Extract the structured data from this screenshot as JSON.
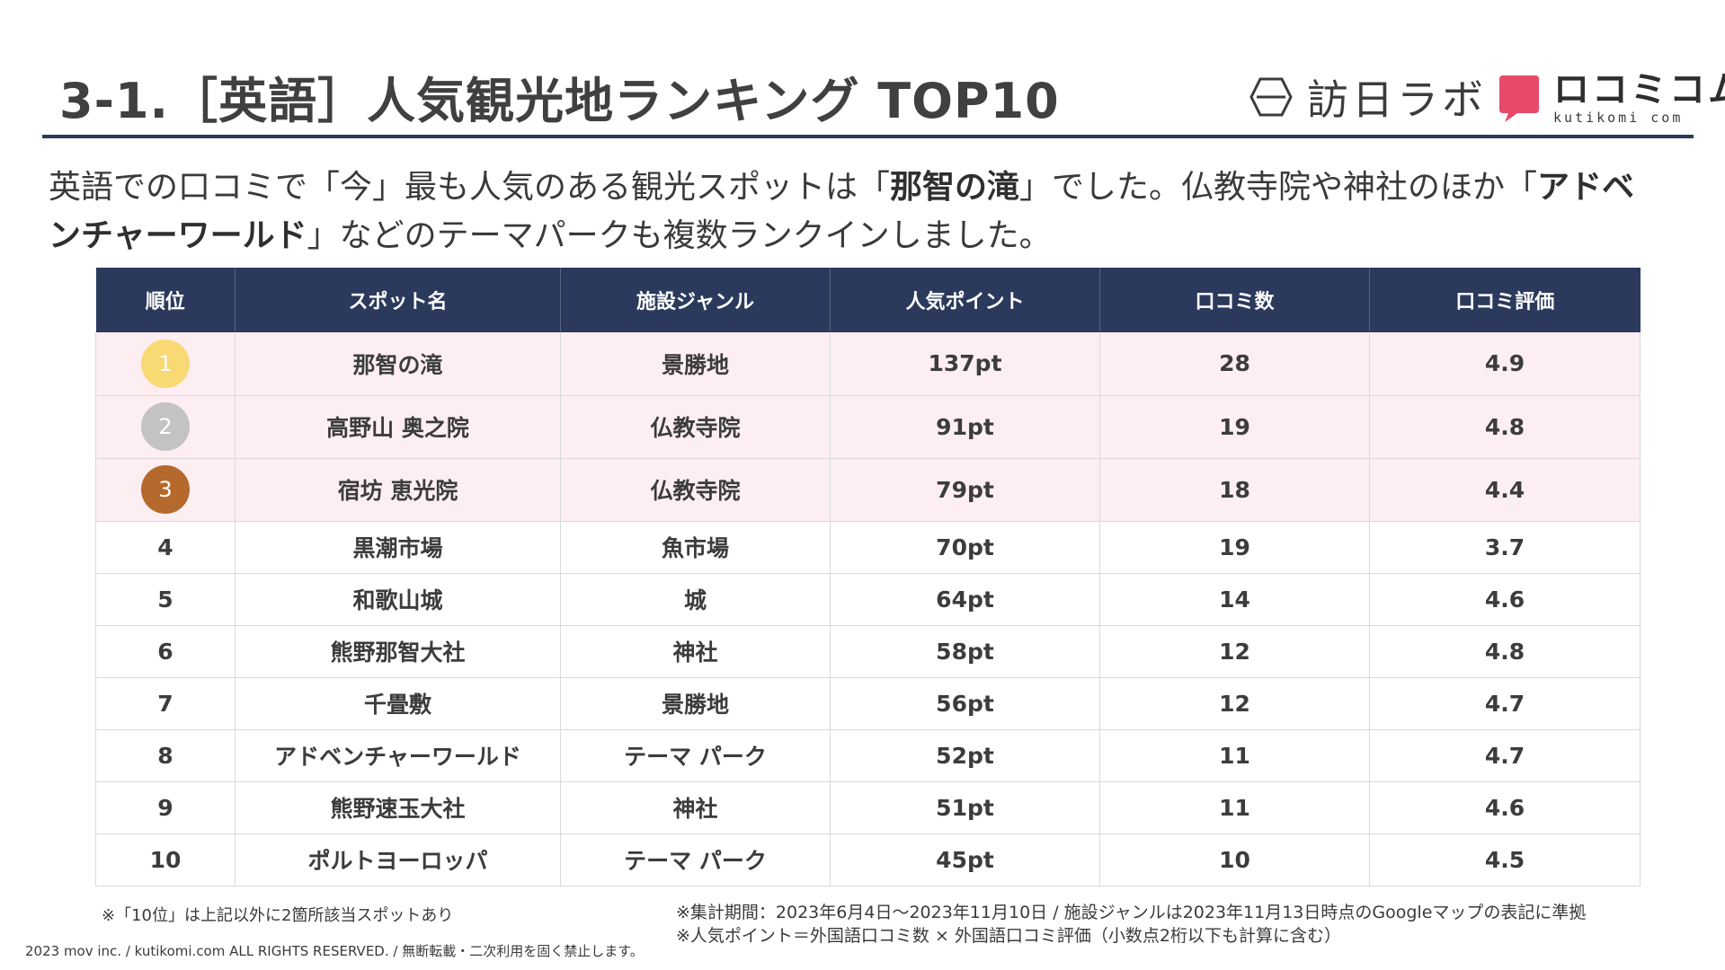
{
  "header": {
    "title": "3-1.［英語］人気観光地ランキング TOP10",
    "logo_houjin_text": "訪日ラボ",
    "logo_kuchikomi_main": "ロコミコム",
    "logo_kuchikomi_sub": "kutikomi com"
  },
  "lead": {
    "part1": "英語での口コミで「今」最も人気のある観光スポットは「",
    "bold1": "那智の滝",
    "part2": "」でした。仏教寺院や神社のほか「",
    "bold2": "アドベンチャーワールド",
    "part3": "」などのテーマパークも複数ランクインしました。"
  },
  "table": {
    "columns": [
      "順位",
      "スポット名",
      "施設ジャンル",
      "人気ポイント",
      "口コミ数",
      "口コミ評価"
    ],
    "rows": [
      {
        "rank": "1",
        "spot": "那智の滝",
        "genre": "景勝地",
        "points": "137pt",
        "reviews": "28",
        "rating": "4.9"
      },
      {
        "rank": "2",
        "spot": "高野山 奥之院",
        "genre": "仏教寺院",
        "points": "91pt",
        "reviews": "19",
        "rating": "4.8"
      },
      {
        "rank": "3",
        "spot": "宿坊 恵光院",
        "genre": "仏教寺院",
        "points": "79pt",
        "reviews": "18",
        "rating": "4.4"
      },
      {
        "rank": "4",
        "spot": "黒潮市場",
        "genre": "魚市場",
        "points": "70pt",
        "reviews": "19",
        "rating": "3.7"
      },
      {
        "rank": "5",
        "spot": "和歌山城",
        "genre": "城",
        "points": "64pt",
        "reviews": "14",
        "rating": "4.6"
      },
      {
        "rank": "6",
        "spot": "熊野那智大社",
        "genre": "神社",
        "points": "58pt",
        "reviews": "12",
        "rating": "4.8"
      },
      {
        "rank": "7",
        "spot": "千畳敷",
        "genre": "景勝地",
        "points": "56pt",
        "reviews": "12",
        "rating": "4.7"
      },
      {
        "rank": "8",
        "spot": "アドベンチャーワールド",
        "genre": "テーマ パーク",
        "points": "52pt",
        "reviews": "11",
        "rating": "4.7"
      },
      {
        "rank": "9",
        "spot": "熊野速玉大社",
        "genre": "神社",
        "points": "51pt",
        "reviews": "11",
        "rating": "4.6"
      },
      {
        "rank": "10",
        "spot": "ポルトヨーロッパ",
        "genre": "テーマ パーク",
        "points": "45pt",
        "reviews": "10",
        "rating": "4.5"
      }
    ]
  },
  "notes": {
    "left": "※「10位」は上記以外に2箇所該当スポットあり",
    "right1": "※集計期間：2023年6月4日～2023年11月10日 / 施設ジャンルは2023年11月13日時点のGoogleマップの表記に準拠",
    "right2": "※人気ポイント＝外国語口コミ数 × 外国語口コミ評価（小数点2桁以下も計算に含む）"
  },
  "footer": {
    "copyright": "2023 mov inc. / kutikomi.com ALL RIGHTS RESERVED. / 無断転載・二次利用を固く禁止します。"
  },
  "colors": {
    "navy": "#2b3a5c",
    "highlight_row": "#fdeef2",
    "gold": "#f9d974",
    "silver": "#c3c3c3",
    "bronze": "#b5692c",
    "brand_pink": "#e84a6a"
  }
}
